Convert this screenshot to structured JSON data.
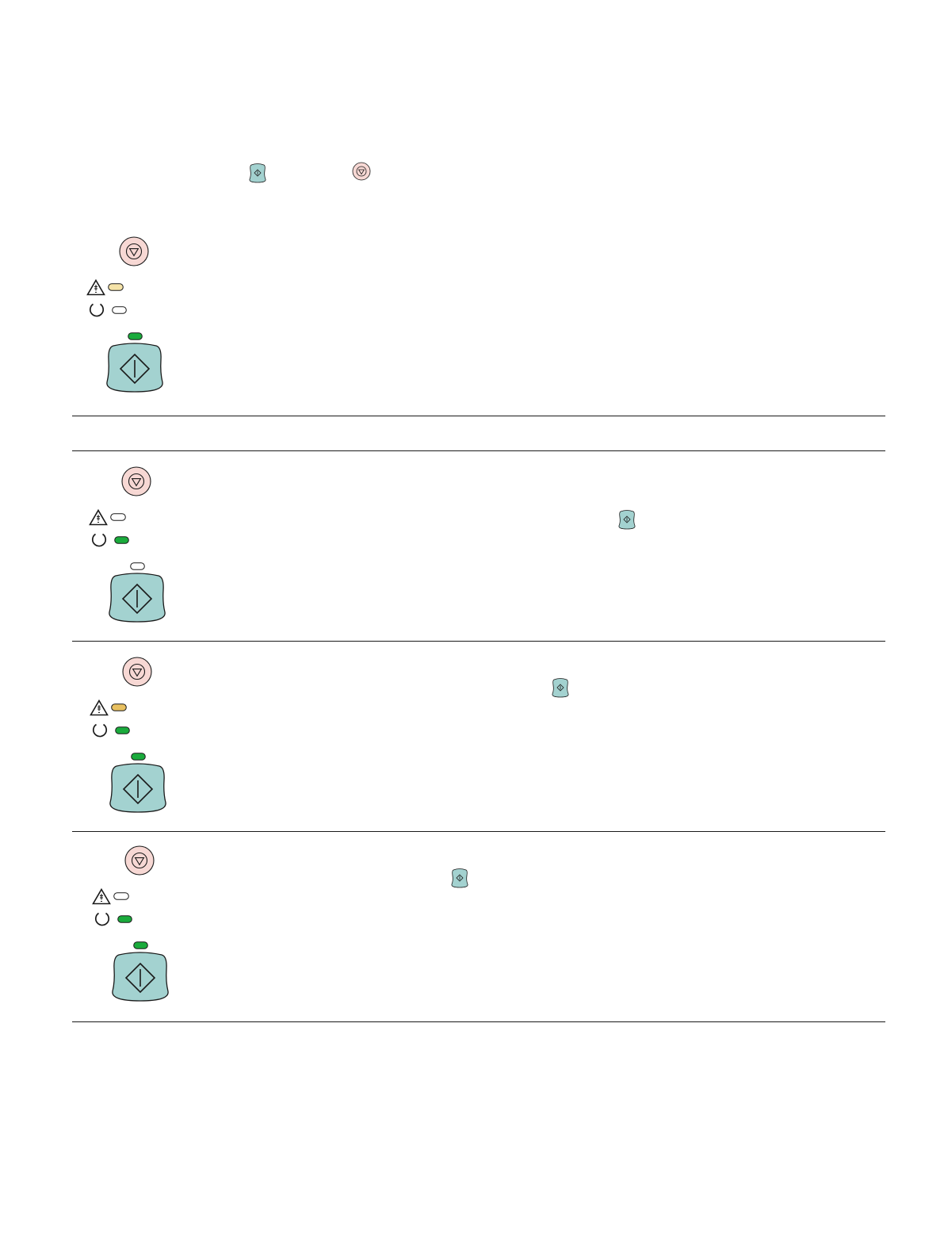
{
  "colors": {
    "go_button_fill": "#a3d2d0",
    "cancel_button_fill": "#f7d8d4",
    "led_green": "#1aab3c",
    "led_amber": "#e8c060",
    "led_amber_light": "#f5e3a8",
    "led_off": "#ffffff",
    "outline": "#1a1a1a"
  },
  "icons": {
    "go": "go-button-icon",
    "cancel": "cancel-button-icon",
    "attention": "attention-icon",
    "ready": "ready-icon"
  },
  "inline_icons": [
    {
      "name": "go-button-icon"
    },
    {
      "name": "cancel-button-icon"
    }
  ],
  "panels": [
    {
      "name": "control-panel-1",
      "attention_led": "amber_light",
      "ready_led": "off",
      "go_led": "green",
      "inline_go_icon": false
    },
    {
      "name": "control-panel-2",
      "attention_led": "off",
      "ready_led": "green",
      "go_led": "off",
      "inline_go_icon": true
    },
    {
      "name": "control-panel-3",
      "attention_led": "amber",
      "ready_led": "green",
      "go_led": "green",
      "inline_go_icon": true
    },
    {
      "name": "control-panel-4",
      "attention_led": "off",
      "ready_led": "green",
      "go_led": "green",
      "inline_go_icon": true
    }
  ]
}
